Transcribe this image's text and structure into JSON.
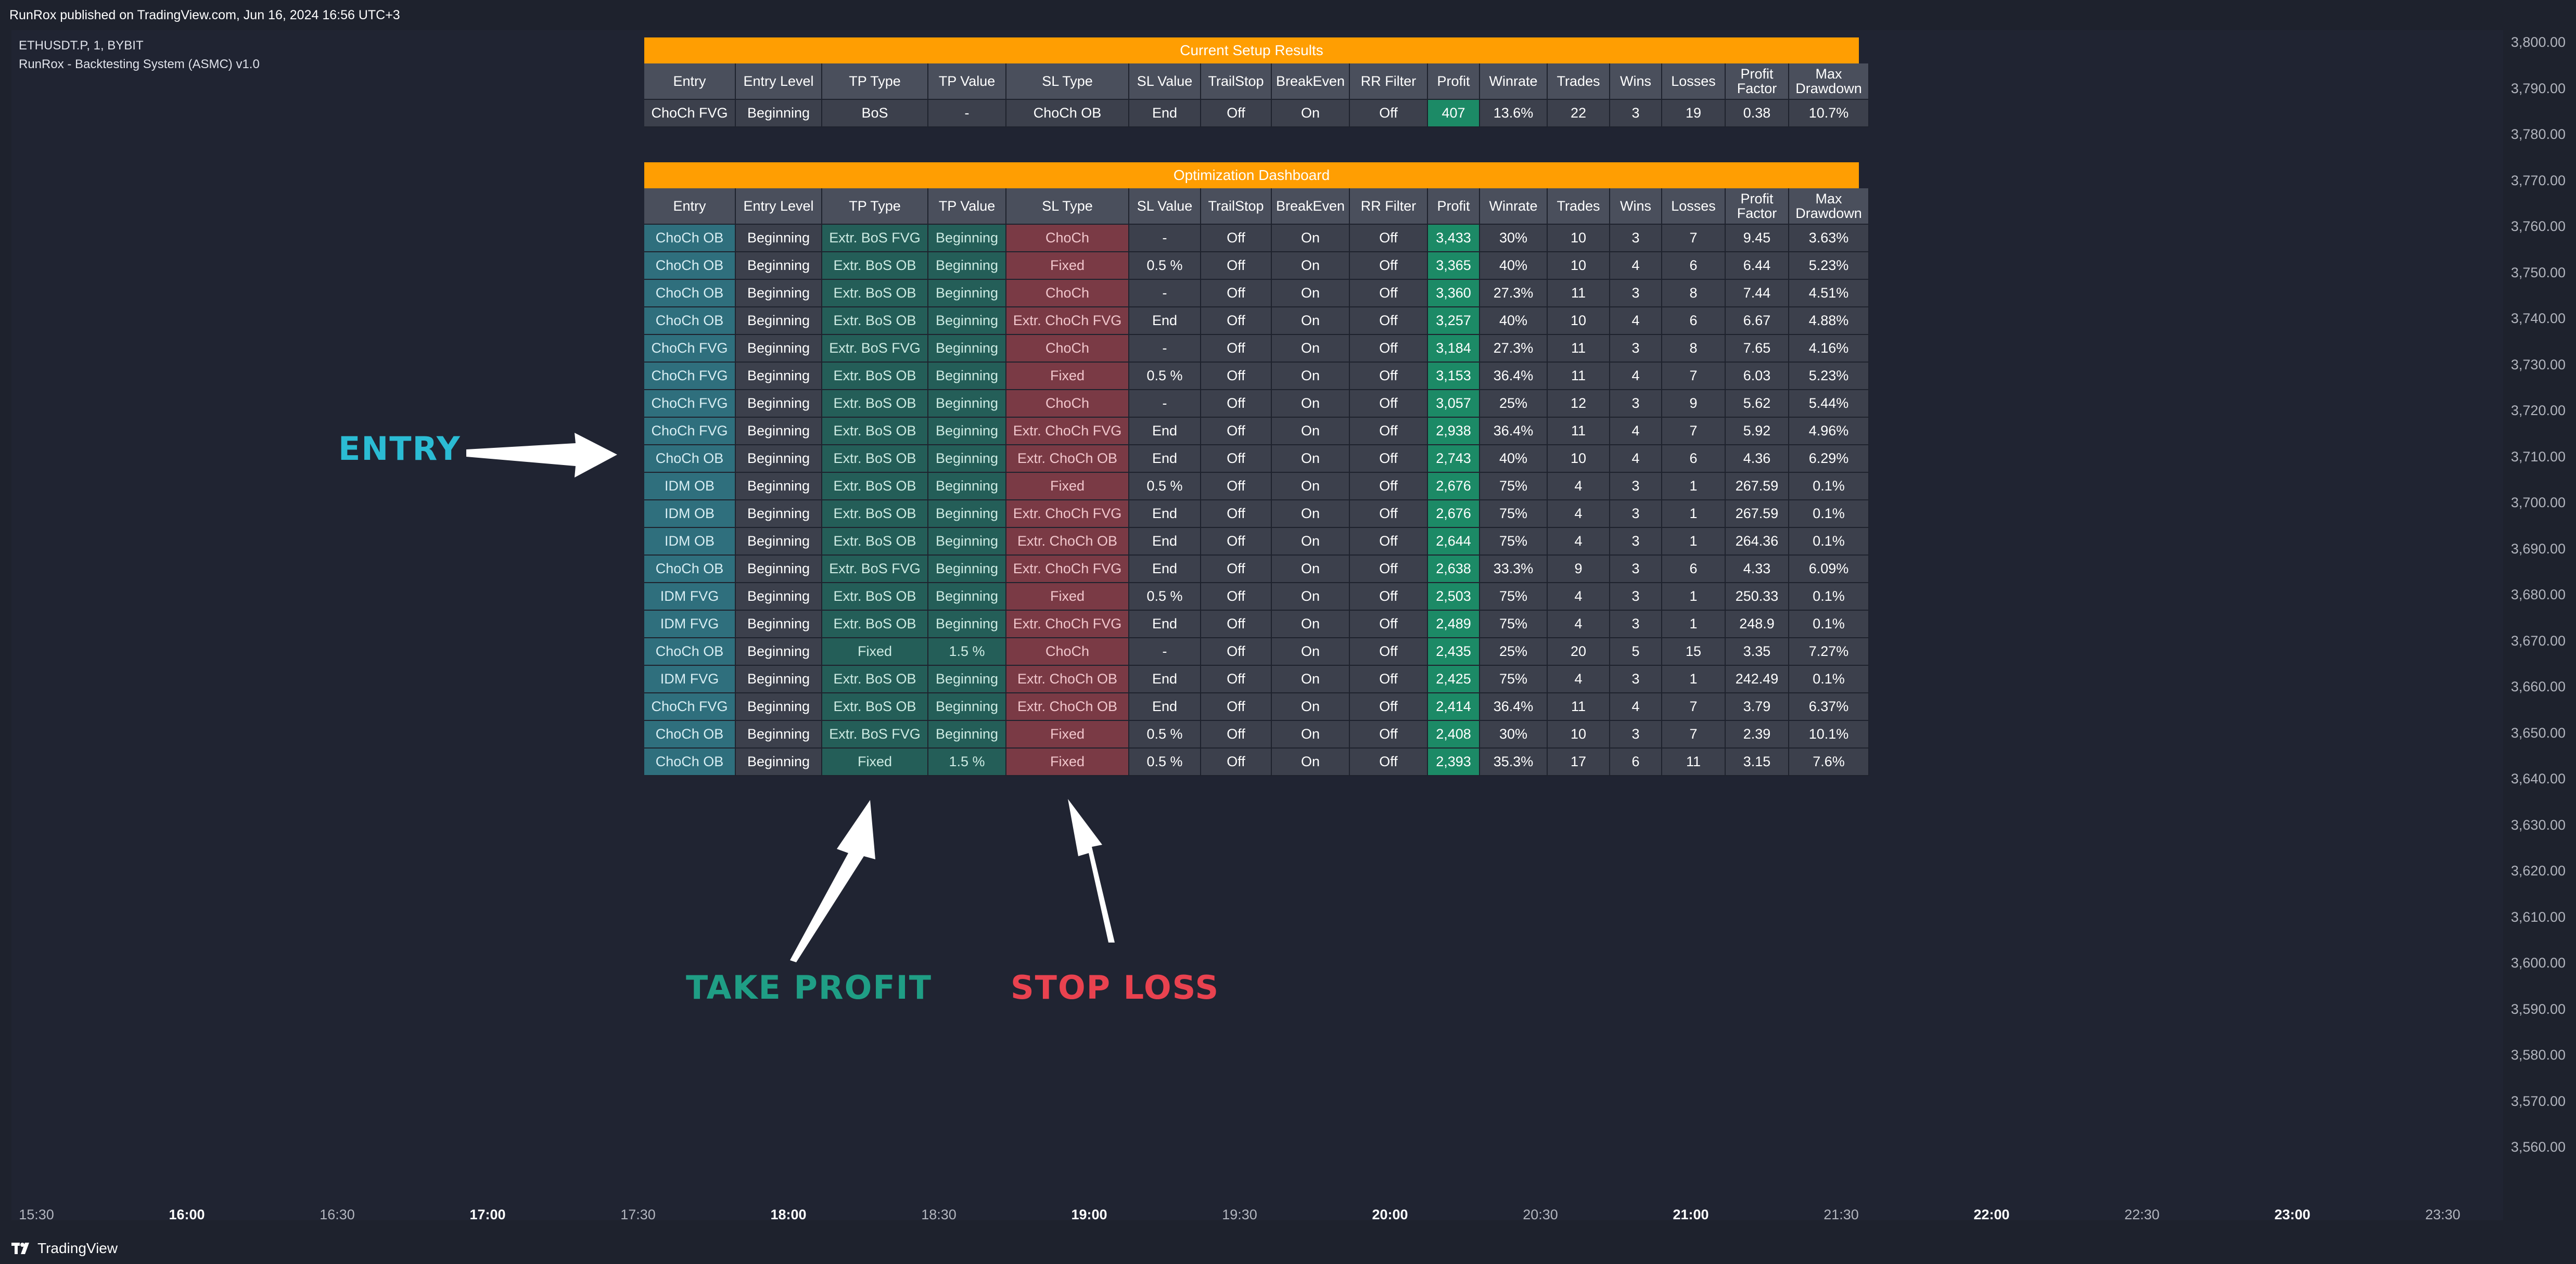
{
  "header": {
    "publish_line": "RunRox published on TradingView.com, Jun 16, 2024 16:56 UTC+3",
    "symbol_line": "ETHUSDT.P, 1, BYBIT",
    "indicator_line": "RunRox - Backtesting System (ASMC) v1.0"
  },
  "columns": [
    "Entry",
    "Entry Level",
    "TP Type",
    "TP Value",
    "SL Type",
    "SL Value",
    "TrailStop",
    "BreakEven",
    "RR Filter",
    "Profit",
    "Winrate",
    "Trades",
    "Wins",
    "Losses",
    "Profit Factor",
    "Max Drawdown"
  ],
  "current_setup": {
    "title": "Current Setup Results",
    "row": [
      "ChoCh FVG",
      "Beginning",
      "BoS",
      "-",
      "ChoCh OB",
      "End",
      "Off",
      "On",
      "Off",
      "407",
      "13.6%",
      "22",
      "3",
      "19",
      "0.38",
      "10.7%"
    ]
  },
  "optimization": {
    "title": "Optimization Dashboard",
    "rows": [
      [
        "ChoCh OB",
        "Beginning",
        "Extr. BoS FVG",
        "Beginning",
        "ChoCh",
        "-",
        "Off",
        "On",
        "Off",
        "3,433",
        "30%",
        "10",
        "3",
        "7",
        "9.45",
        "3.63%"
      ],
      [
        "ChoCh OB",
        "Beginning",
        "Extr. BoS OB",
        "Beginning",
        "Fixed",
        "0.5 %",
        "Off",
        "On",
        "Off",
        "3,365",
        "40%",
        "10",
        "4",
        "6",
        "6.44",
        "5.23%"
      ],
      [
        "ChoCh OB",
        "Beginning",
        "Extr. BoS OB",
        "Beginning",
        "ChoCh",
        "-",
        "Off",
        "On",
        "Off",
        "3,360",
        "27.3%",
        "11",
        "3",
        "8",
        "7.44",
        "4.51%"
      ],
      [
        "ChoCh OB",
        "Beginning",
        "Extr. BoS OB",
        "Beginning",
        "Extr. ChoCh FVG",
        "End",
        "Off",
        "On",
        "Off",
        "3,257",
        "40%",
        "10",
        "4",
        "6",
        "6.67",
        "4.88%"
      ],
      [
        "ChoCh FVG",
        "Beginning",
        "Extr. BoS FVG",
        "Beginning",
        "ChoCh",
        "-",
        "Off",
        "On",
        "Off",
        "3,184",
        "27.3%",
        "11",
        "3",
        "8",
        "7.65",
        "4.16%"
      ],
      [
        "ChoCh FVG",
        "Beginning",
        "Extr. BoS OB",
        "Beginning",
        "Fixed",
        "0.5 %",
        "Off",
        "On",
        "Off",
        "3,153",
        "36.4%",
        "11",
        "4",
        "7",
        "6.03",
        "5.23%"
      ],
      [
        "ChoCh FVG",
        "Beginning",
        "Extr. BoS OB",
        "Beginning",
        "ChoCh",
        "-",
        "Off",
        "On",
        "Off",
        "3,057",
        "25%",
        "12",
        "3",
        "9",
        "5.62",
        "5.44%"
      ],
      [
        "ChoCh FVG",
        "Beginning",
        "Extr. BoS OB",
        "Beginning",
        "Extr. ChoCh FVG",
        "End",
        "Off",
        "On",
        "Off",
        "2,938",
        "36.4%",
        "11",
        "4",
        "7",
        "5.92",
        "4.96%"
      ],
      [
        "ChoCh OB",
        "Beginning",
        "Extr. BoS OB",
        "Beginning",
        "Extr. ChoCh OB",
        "End",
        "Off",
        "On",
        "Off",
        "2,743",
        "40%",
        "10",
        "4",
        "6",
        "4.36",
        "6.29%"
      ],
      [
        "IDM OB",
        "Beginning",
        "Extr. BoS OB",
        "Beginning",
        "Fixed",
        "0.5 %",
        "Off",
        "On",
        "Off",
        "2,676",
        "75%",
        "4",
        "3",
        "1",
        "267.59",
        "0.1%"
      ],
      [
        "IDM OB",
        "Beginning",
        "Extr. BoS OB",
        "Beginning",
        "Extr. ChoCh FVG",
        "End",
        "Off",
        "On",
        "Off",
        "2,676",
        "75%",
        "4",
        "3",
        "1",
        "267.59",
        "0.1%"
      ],
      [
        "IDM OB",
        "Beginning",
        "Extr. BoS OB",
        "Beginning",
        "Extr. ChoCh OB",
        "End",
        "Off",
        "On",
        "Off",
        "2,644",
        "75%",
        "4",
        "3",
        "1",
        "264.36",
        "0.1%"
      ],
      [
        "ChoCh OB",
        "Beginning",
        "Extr. BoS FVG",
        "Beginning",
        "Extr. ChoCh FVG",
        "End",
        "Off",
        "On",
        "Off",
        "2,638",
        "33.3%",
        "9",
        "3",
        "6",
        "4.33",
        "6.09%"
      ],
      [
        "IDM FVG",
        "Beginning",
        "Extr. BoS OB",
        "Beginning",
        "Fixed",
        "0.5 %",
        "Off",
        "On",
        "Off",
        "2,503",
        "75%",
        "4",
        "3",
        "1",
        "250.33",
        "0.1%"
      ],
      [
        "IDM FVG",
        "Beginning",
        "Extr. BoS OB",
        "Beginning",
        "Extr. ChoCh FVG",
        "End",
        "Off",
        "On",
        "Off",
        "2,489",
        "75%",
        "4",
        "3",
        "1",
        "248.9",
        "0.1%"
      ],
      [
        "ChoCh OB",
        "Beginning",
        "Fixed",
        "1.5 %",
        "ChoCh",
        "-",
        "Off",
        "On",
        "Off",
        "2,435",
        "25%",
        "20",
        "5",
        "15",
        "3.35",
        "7.27%"
      ],
      [
        "IDM FVG",
        "Beginning",
        "Extr. BoS OB",
        "Beginning",
        "Extr. ChoCh OB",
        "End",
        "Off",
        "On",
        "Off",
        "2,425",
        "75%",
        "4",
        "3",
        "1",
        "242.49",
        "0.1%"
      ],
      [
        "ChoCh FVG",
        "Beginning",
        "Extr. BoS OB",
        "Beginning",
        "Extr. ChoCh OB",
        "End",
        "Off",
        "On",
        "Off",
        "2,414",
        "36.4%",
        "11",
        "4",
        "7",
        "3.79",
        "6.37%"
      ],
      [
        "ChoCh OB",
        "Beginning",
        "Extr. BoS FVG",
        "Beginning",
        "Fixed",
        "0.5 %",
        "Off",
        "On",
        "Off",
        "2,408",
        "30%",
        "10",
        "3",
        "7",
        "2.39",
        "10.1%"
      ],
      [
        "ChoCh OB",
        "Beginning",
        "Fixed",
        "1.5 %",
        "Fixed",
        "0.5 %",
        "Off",
        "On",
        "Off",
        "2,393",
        "35.3%",
        "17",
        "6",
        "11",
        "3.15",
        "7.6%"
      ]
    ]
  },
  "annotations": {
    "entry": "ENTRY",
    "take_profit": "TAKE PROFIT",
    "stop_loss": "STOP LOSS"
  },
  "price_scale": [
    "3,800.00",
    "3,790.00",
    "3,780.00",
    "3,770.00",
    "3,760.00",
    "3,750.00",
    "3,740.00",
    "3,730.00",
    "3,720.00",
    "3,710.00",
    "3,700.00",
    "3,690.00",
    "3,680.00",
    "3,670.00",
    "3,660.00",
    "3,650.00",
    "3,640.00",
    "3,630.00",
    "3,620.00",
    "3,610.00",
    "3,600.00",
    "3,590.00",
    "3,580.00",
    "3,570.00",
    "3,560.00"
  ],
  "time_axis": [
    {
      "label": "15:30",
      "major": false
    },
    {
      "label": "16:00",
      "major": true
    },
    {
      "label": "16:30",
      "major": false
    },
    {
      "label": "17:00",
      "major": true
    },
    {
      "label": "17:30",
      "major": false
    },
    {
      "label": "18:00",
      "major": true
    },
    {
      "label": "18:30",
      "major": false
    },
    {
      "label": "19:00",
      "major": true
    },
    {
      "label": "19:30",
      "major": false
    },
    {
      "label": "20:00",
      "major": true
    },
    {
      "label": "20:30",
      "major": false
    },
    {
      "label": "21:00",
      "major": true
    },
    {
      "label": "21:30",
      "major": false
    },
    {
      "label": "22:00",
      "major": true
    },
    {
      "label": "22:30",
      "major": false
    },
    {
      "label": "23:00",
      "major": true
    },
    {
      "label": "23:30",
      "major": false
    }
  ],
  "branding": {
    "name": "TradingView",
    "logo_icon": "tradingview-logo-icon"
  },
  "colors": {
    "background": "#1e222d",
    "title_bar": "#ff9e02",
    "entry_column": "#2f6f7d",
    "tp_column": "#245e58",
    "sl_column": "#7a3a45",
    "profit_cell": "#1c8a66",
    "entry_annotation": "#2bbcd4",
    "tp_annotation": "#1f9e85",
    "sl_annotation": "#e9424f"
  }
}
